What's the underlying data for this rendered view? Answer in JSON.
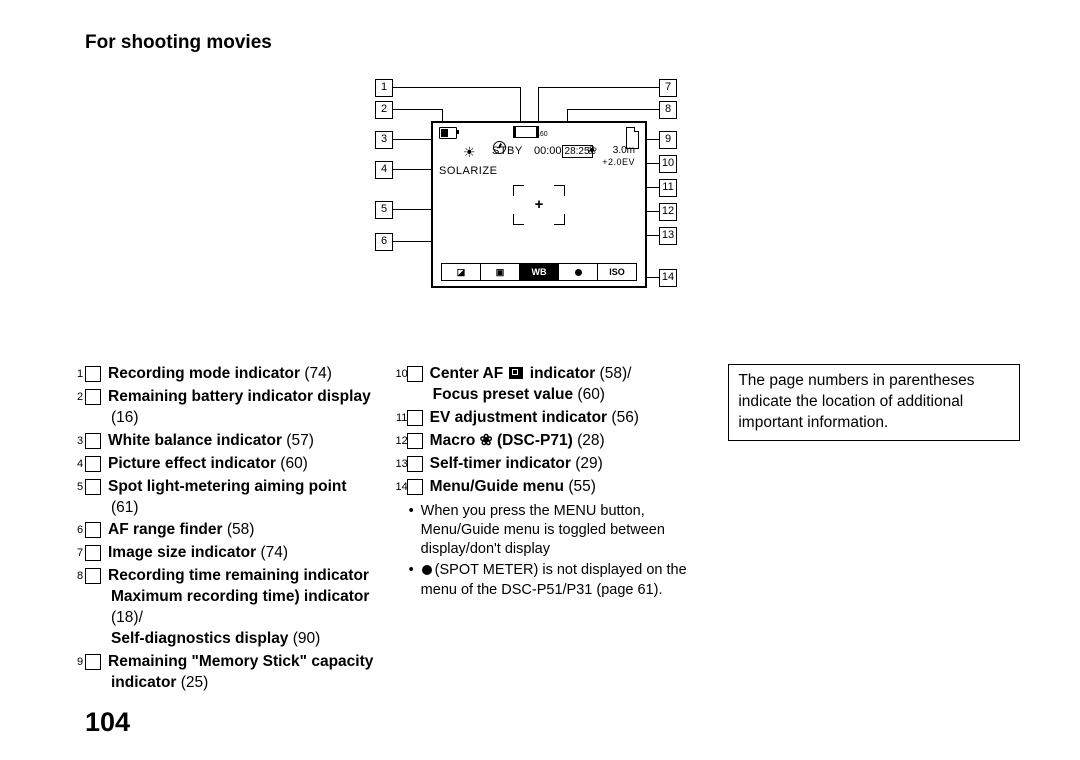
{
  "title": "For shooting movies",
  "page_number": "104",
  "screen": {
    "size_label": "160",
    "stby": "STBY",
    "time_elapsed": "00:00",
    "time_remaining": "28:25",
    "distance": "3.0m",
    "ev": "+2.0EV",
    "effect": "SOLARIZE",
    "plus": "+",
    "macro_glyph": "❀",
    "sun_glyph": "☀",
    "menu": {
      "wb": "WB",
      "iso": "ISO",
      "ev_sym": "◪",
      "pf_sym": "▣"
    }
  },
  "callouts_left": [
    "1",
    "2",
    "3",
    "4",
    "5",
    "6"
  ],
  "callouts_right": [
    "7",
    "8",
    "9",
    "10",
    "11",
    "12",
    "13",
    "14"
  ],
  "columns": {
    "left": [
      {
        "n": "1",
        "bold": "Recording mode indicator",
        "pg": "(74)"
      },
      {
        "n": "2",
        "bold": "Remaining battery indicator display",
        "pg": "(16)"
      },
      {
        "n": "3",
        "bold": "White balance indicator",
        "pg": "(57)"
      },
      {
        "n": "4",
        "bold": "Picture effect indicator",
        "pg": "(60)"
      },
      {
        "n": "5",
        "bold": "Spot light-metering aiming point",
        "pg": "(61)"
      },
      {
        "n": "6",
        "bold": "AF range finder",
        "pg": "(58)"
      },
      {
        "n": "7",
        "bold": "Image size indicator",
        "pg": "(74)"
      },
      {
        "n": "8",
        "bold": "Recording time remaining indicator Maximum recording time) indicator",
        "pg": "(18)/",
        "cont_bold": "Self-diagnostics display",
        "cont_pg": "(90)"
      },
      {
        "n": "9",
        "bold": "Remaining \"Memory Stick\" capacity indicator",
        "pg": "(25)"
      }
    ],
    "mid": [
      {
        "n": "10",
        "bold_pre": "Center AF ",
        "icon": "af",
        "bold_post": " indicator",
        "pg": "(58)/",
        "cont_bold": "Focus preset value",
        "cont_pg": "(60)"
      },
      {
        "n": "11",
        "bold": "EV adjustment indicator",
        "pg": "(56)"
      },
      {
        "n": "12",
        "bold_pre": "Macro ",
        "icon": "macro",
        "bold_post": " (DSC-P71)",
        "pg": "(28)"
      },
      {
        "n": "13",
        "bold": "Self-timer indicator",
        "pg": "(29)"
      },
      {
        "n": "14",
        "bold": "Menu/Guide menu",
        "pg": "(55)"
      }
    ],
    "bullets": [
      "When you press the MENU button, Menu/Guide menu is toggled between display/don't display",
      {
        "pre": "",
        "icon": "dot",
        "post": "(SPOT METER) is not displayed on the menu of the DSC-P51/P31 (page 61)."
      }
    ],
    "note": "The page numbers in parentheses indicate the location of additional important information."
  }
}
